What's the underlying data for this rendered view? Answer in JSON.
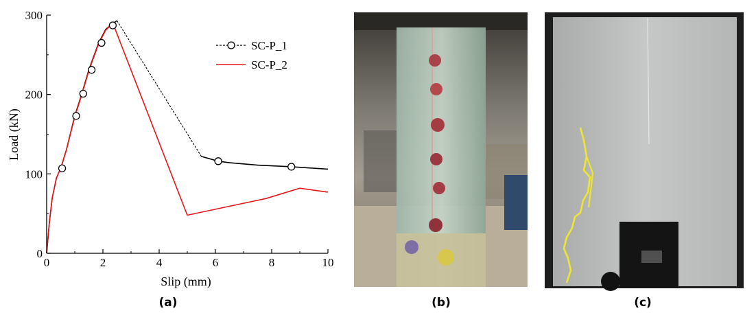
{
  "chart_data": {
    "type": "line",
    "xlabel": "Slip (mm)",
    "ylabel": "Load (kN)",
    "xlim": [
      0,
      10
    ],
    "ylim": [
      0,
      300
    ],
    "x_ticks": [
      0,
      2,
      4,
      6,
      8,
      10
    ],
    "y_ticks": [
      0,
      100,
      200,
      300
    ],
    "legend_position": "top-right",
    "grid": false,
    "series": [
      {
        "name": "SC-P_1",
        "color": "#000000",
        "style": "solid-then-dashed with open circle markers",
        "solid_points": [
          [
            0,
            0
          ],
          [
            0.1,
            40
          ],
          [
            0.2,
            70
          ],
          [
            0.35,
            95
          ],
          [
            0.5,
            107
          ],
          [
            0.7,
            130
          ],
          [
            1.0,
            173
          ],
          [
            1.25,
            201
          ],
          [
            1.5,
            231
          ],
          [
            1.85,
            265
          ],
          [
            2.1,
            282
          ],
          [
            2.3,
            288
          ],
          [
            2.5,
            293
          ]
        ],
        "dashed_points": [
          [
            2.5,
            293
          ],
          [
            5.5,
            122
          ]
        ],
        "tail_points": [
          [
            5.5,
            122
          ],
          [
            6.1,
            116
          ],
          [
            6.5,
            114
          ],
          [
            7.5,
            111
          ],
          [
            8.7,
            109
          ],
          [
            10,
            106
          ]
        ],
        "markers": [
          [
            0.55,
            107
          ],
          [
            1.05,
            173
          ],
          [
            1.3,
            201
          ],
          [
            1.6,
            231
          ],
          [
            1.95,
            265
          ],
          [
            2.35,
            287
          ],
          [
            6.1,
            116
          ],
          [
            8.7,
            109
          ]
        ]
      },
      {
        "name": "SC-P_2",
        "color": "#e8161b",
        "style": "solid",
        "points": [
          [
            0,
            0
          ],
          [
            0.1,
            40
          ],
          [
            0.2,
            70
          ],
          [
            0.35,
            95
          ],
          [
            0.5,
            107
          ],
          [
            0.7,
            130
          ],
          [
            1.0,
            172
          ],
          [
            1.25,
            200
          ],
          [
            1.5,
            230
          ],
          [
            1.85,
            264
          ],
          [
            2.1,
            281
          ],
          [
            2.35,
            290
          ],
          [
            5.0,
            48
          ],
          [
            7.8,
            69
          ],
          [
            9.0,
            82
          ],
          [
            10,
            77
          ]
        ]
      }
    ]
  },
  "panels": {
    "a_label": "(a)",
    "b_label": "(b)",
    "c_label": "(c)"
  }
}
